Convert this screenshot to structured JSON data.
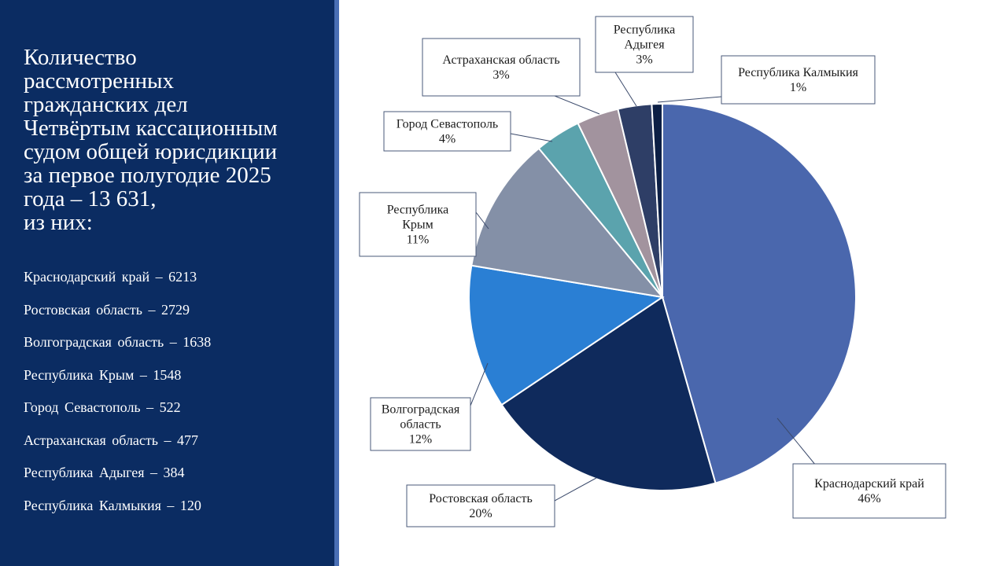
{
  "sidebar": {
    "title": "Количество\nрассмотренных\nгражданских дел\nЧетвёртым кассационным\nсудом общей юрисдикции\nза первое полугодие 2025\nгода – 13 631,\nиз них:",
    "items": [
      "Краснодарский  край  – 6213",
      "Ростовская  область  – 2729",
      "Волгоградская  область  – 1638",
      "Республика  Крым  – 1548",
      "Город  Севастополь  – 522",
      "Астраханская  область  – 477",
      "Республика  Адыгея  – 384",
      "Республика  Калмыкия  – 120"
    ]
  },
  "colors": {
    "sidebar_bg": "#0b2c62",
    "sidebar_edge": "#4a6fb4",
    "text": "#ffffff"
  },
  "chart_data": {
    "type": "pie",
    "title": "",
    "start_angle_deg": 0,
    "direction": "clockwise",
    "slices": [
      {
        "label": "Краснодарский край",
        "value": 6213,
        "percent_label": "46%",
        "color": "#4a67ad"
      },
      {
        "label": "Ростовская область",
        "value": 2729,
        "percent_label": "20%",
        "color": "#0f2a5c"
      },
      {
        "label": "Волгоградская область",
        "value": 1638,
        "percent_label": "12%",
        "color": "#2a7fd4"
      },
      {
        "label": "Республика Крым",
        "value": 1548,
        "percent_label": "11%",
        "color": "#8490a7"
      },
      {
        "label": "Город Севастополь",
        "value": 522,
        "percent_label": "4%",
        "color": "#5ba3ad"
      },
      {
        "label": "Астраханская область",
        "value": 477,
        "percent_label": "3%",
        "color": "#a2939e"
      },
      {
        "label": "Республика Адыгея",
        "value": 384,
        "percent_label": "3%",
        "color": "#2e3e66"
      },
      {
        "label": "Республика Калмыкия",
        "value": 120,
        "percent_label": "1%",
        "color": "#0c1f45"
      }
    ]
  }
}
